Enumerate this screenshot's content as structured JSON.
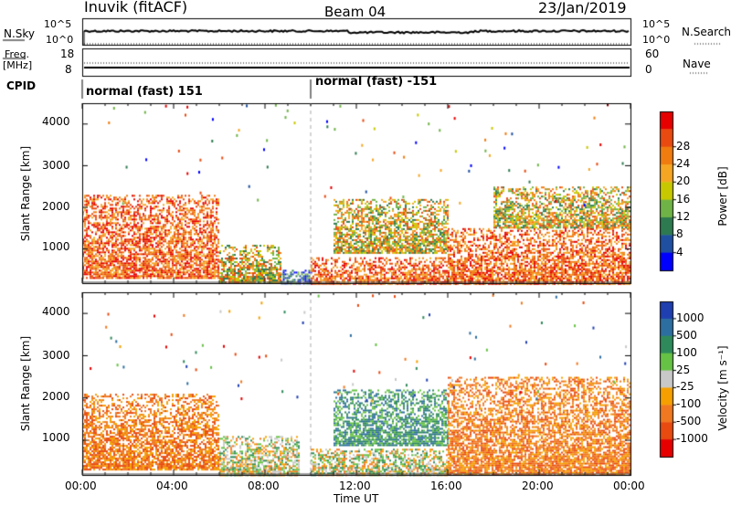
{
  "header": {
    "station": "Inuvik (fitACF)",
    "beam": "Beam 04",
    "date": "23/Jan/2019"
  },
  "strips": {
    "nsky_label": "N.Sky",
    "nsky_ticks": [
      "10^5",
      "10^0"
    ],
    "nsearch_label": "N.Search",
    "nsearch_ticks": [
      "10^5",
      "10^0"
    ],
    "freq_label_1": "Freq.",
    "freq_label_2": "[MHz]",
    "freq_ticks": [
      "18",
      "8"
    ],
    "nave_label": "Nave",
    "nave_ticks": [
      "60",
      "0"
    ],
    "cpid_label": "CPID",
    "cpid_segments": [
      {
        "label": "normal (fast) 151",
        "start_hour": 0
      },
      {
        "label": "normal (fast) -151",
        "start_hour": 10.0
      }
    ]
  },
  "chart_data": [
    {
      "type": "heatmap",
      "name": "power",
      "ylabel": "Slant Range [km]",
      "xlabel": "Time UT",
      "xlim": [
        0,
        24
      ],
      "ylim": [
        180,
        4500
      ],
      "yticks": [
        "1000",
        "2000",
        "3000",
        "4000"
      ],
      "xticks": [
        "00:00",
        "04:00",
        "08:00",
        "12:00",
        "16:00",
        "20:00",
        "00:00"
      ],
      "colorbar": {
        "label": "Power [dB]",
        "ticks": [
          "4",
          "8",
          "12",
          "16",
          "20",
          "24",
          "28"
        ],
        "colors": [
          "#0000ff",
          "#1f4fa0",
          "#2e7a50",
          "#6fb347",
          "#c8c800",
          "#f5a623",
          "#f07c10",
          "#e84a10",
          "#e60000"
        ]
      },
      "echo_regions": [
        {
          "t_start": 0.0,
          "t_end": 6.0,
          "r_start": 300,
          "r_end": 2300,
          "level": "high"
        },
        {
          "t_start": 6.0,
          "t_end": 8.7,
          "r_start": 180,
          "r_end": 1100,
          "level": "mid"
        },
        {
          "t_start": 8.7,
          "t_end": 10.0,
          "r_start": 180,
          "r_end": 500,
          "level": "low"
        },
        {
          "t_start": 10.0,
          "t_end": 16.0,
          "r_start": 180,
          "r_end": 800,
          "level": "high"
        },
        {
          "t_start": 11.0,
          "t_end": 16.0,
          "r_start": 900,
          "r_end": 2200,
          "level": "mid"
        },
        {
          "t_start": 16.0,
          "t_end": 24.0,
          "r_start": 180,
          "r_end": 1500,
          "level": "high"
        },
        {
          "t_start": 18.0,
          "t_end": 24.0,
          "r_start": 1500,
          "r_end": 2500,
          "level": "mid"
        }
      ]
    },
    {
      "type": "heatmap",
      "name": "velocity",
      "ylabel": "Slant Range [km]",
      "xlabel": "Time UT",
      "xlim": [
        0,
        24
      ],
      "ylim": [
        180,
        4500
      ],
      "yticks": [
        "1000",
        "2000",
        "3000",
        "4000"
      ],
      "xticks": [
        "00:00",
        "04:00",
        "08:00",
        "12:00",
        "16:00",
        "20:00",
        "00:00"
      ],
      "colorbar": {
        "label": "Velocity [m s⁻¹]",
        "ticks": [
          "1000",
          "500",
          "100",
          "25",
          "-25",
          "-100",
          "-500",
          "-1000"
        ],
        "colors": [
          "#1f3fb0",
          "#2d6ea0",
          "#2e8a5a",
          "#66c244",
          "#c8c8c8",
          "#f5a000",
          "#f07820",
          "#e84a10",
          "#e60000"
        ]
      },
      "echo_regions": [
        {
          "t_start": 0.0,
          "t_end": 6.0,
          "r_start": 300,
          "r_end": 2100,
          "level": "neg"
        },
        {
          "t_start": 6.0,
          "t_end": 9.5,
          "r_start": 180,
          "r_end": 1100,
          "level": "mixed"
        },
        {
          "t_start": 10.0,
          "t_end": 16.0,
          "r_start": 180,
          "r_end": 800,
          "level": "mixed"
        },
        {
          "t_start": 11.0,
          "t_end": 16.0,
          "r_start": 900,
          "r_end": 2200,
          "level": "pos"
        },
        {
          "t_start": 16.0,
          "t_end": 24.0,
          "r_start": 180,
          "r_end": 2500,
          "level": "neg"
        }
      ]
    }
  ]
}
